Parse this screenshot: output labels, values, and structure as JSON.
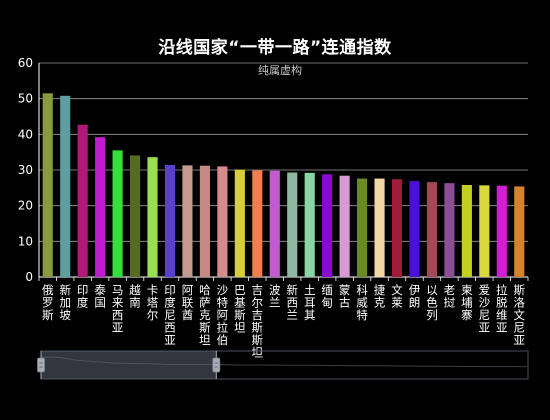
{
  "chart_data": {
    "type": "bar",
    "title": "沿线国家“一带一路”连通指数",
    "subtitle": "纯属虚构",
    "xlabel": "",
    "ylabel": "",
    "ylim": [
      0,
      60
    ],
    "yticks": [
      0,
      10,
      20,
      30,
      40,
      50,
      60
    ],
    "grid": true,
    "categories": [
      "俄罗斯",
      "新加坡",
      "印度",
      "泰国",
      "马来西亚",
      "越南",
      "卡塔尔",
      "印度尼西亚",
      "阿联酋",
      "哈萨克斯坦",
      "沙特阿拉伯",
      "巴基斯坦",
      "吉尔吉斯斯坦",
      "波兰",
      "新西兰",
      "土耳其",
      "缅甸",
      "蒙古",
      "科威特",
      "捷克",
      "文莱",
      "伊朗",
      "以色列",
      "老挝",
      "柬埔寨",
      "爱沙尼亚",
      "拉脱维亚",
      "斯洛文尼亚"
    ],
    "values": [
      51.5,
      50.8,
      42.7,
      39.2,
      35.5,
      34.1,
      33.6,
      31.4,
      31.3,
      31.2,
      31.0,
      30.1,
      29.9,
      29.8,
      29.3,
      29.2,
      28.8,
      28.4,
      27.6,
      27.6,
      27.4,
      26.9,
      26.6,
      26.3,
      25.8,
      25.7,
      25.6,
      25.4
    ],
    "colors": [
      "#8a9a3f",
      "#5f9ea0",
      "#b0187a",
      "#c21bcf",
      "#31e03b",
      "#556b1f",
      "#9adf52",
      "#5a3fd0",
      "#c49a8e",
      "#c58b83",
      "#d68c8c",
      "#d6cf3a",
      "#f27d4f",
      "#c35bd0",
      "#8fb7a1",
      "#8ad5a4",
      "#8a0bd0",
      "#d79ad4",
      "#6b8a23",
      "#f3d6a6",
      "#a01c3b",
      "#4b0fd9",
      "#a04a56",
      "#8c4f96",
      "#c3cf1f",
      "#d9d73c",
      "#d41ed6",
      "#d6842b"
    ]
  },
  "zoom": {
    "start_fraction": 0.0,
    "end_fraction": 0.36
  }
}
